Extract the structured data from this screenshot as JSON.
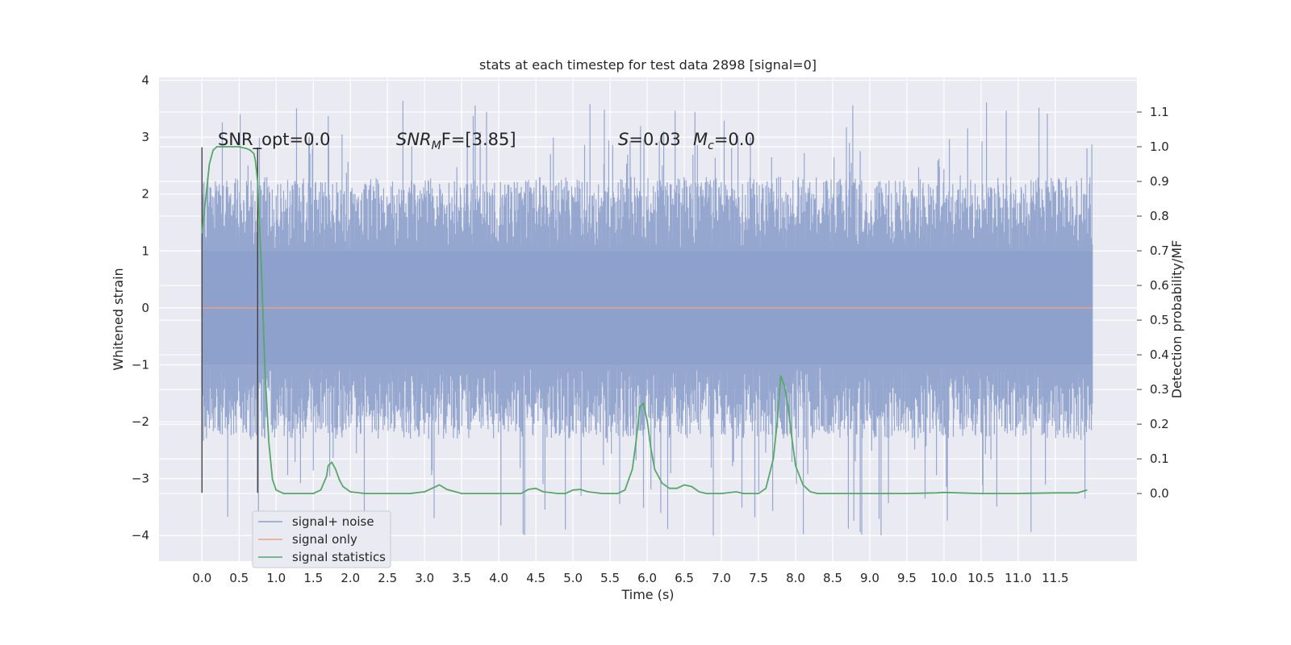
{
  "chart_data": {
    "type": "line",
    "title": "stats at each timestep for test data 2898 [signal=0]",
    "xlabel": "Time (s)",
    "ylabel_left": "Whitened strain",
    "ylabel_right": "Detection probability/MF",
    "xlim": [
      -0.58,
      12.6
    ],
    "ylim_left": [
      -4.45,
      4.05
    ],
    "ylim_right": [
      -0.195,
      1.2
    ],
    "xticks": [
      "0.0",
      "0.5",
      "1.0",
      "1.5",
      "2.0",
      "2.5",
      "3.0",
      "3.5",
      "4.0",
      "4.5",
      "5.0",
      "5.5",
      "6.0",
      "6.5",
      "7.0",
      "7.5",
      "8.0",
      "8.5",
      "9.0",
      "9.5",
      "10.0",
      "10.5",
      "11.0",
      "11.5"
    ],
    "yticks_left": [
      "−4",
      "−3",
      "−2",
      "−1",
      "0",
      "1",
      "2",
      "3",
      "4"
    ],
    "yticks_right": [
      "0.0",
      "0.1",
      "0.2",
      "0.3",
      "0.4",
      "0.5",
      "0.6",
      "0.7",
      "0.8",
      "0.9",
      "1.0",
      "1.1"
    ],
    "grid": true,
    "legend_position": "lower-left",
    "annotations": {
      "snr_opt": "SNR_opt=0.0",
      "snr_mf_sym": "SNR",
      "snr_mf_sub": "M",
      "snr_mf_rest": "F=[3.85]",
      "s_sym": "S",
      "s_rest": "=0.03",
      "mc_sym": "M",
      "mc_sub": "c",
      "mc_rest": "=0.0"
    },
    "series": [
      {
        "name": "signal+ noise",
        "color": "#8da0cb",
        "kind": "noise",
        "x_range": [
          0.0,
          12.0
        ],
        "envelope_upper": 2.3,
        "envelope_lower": -2.3,
        "peak_max": 3.65,
        "peak_min": -4.05
      },
      {
        "name": "signal only",
        "color": "#e8a384",
        "x": [
          0.0,
          12.0
        ],
        "y": [
          0.0,
          0.0
        ]
      },
      {
        "name": "signal statistics",
        "color": "#55a868",
        "x": [
          0.0,
          0.05,
          0.1,
          0.15,
          0.2,
          0.3,
          0.4,
          0.5,
          0.6,
          0.65,
          0.7,
          0.72,
          0.75,
          0.8,
          0.85,
          0.9,
          0.95,
          1.0,
          1.1,
          1.5,
          1.6,
          1.68,
          1.7,
          1.75,
          1.8,
          1.85,
          1.9,
          2.0,
          2.2,
          2.5,
          2.8,
          3.0,
          3.1,
          3.2,
          3.3,
          3.5,
          4.0,
          4.3,
          4.4,
          4.5,
          4.6,
          4.8,
          4.9,
          5.0,
          5.1,
          5.2,
          5.4,
          5.6,
          5.7,
          5.8,
          5.85,
          5.9,
          5.95,
          6.0,
          6.05,
          6.1,
          6.2,
          6.3,
          6.4,
          6.5,
          6.6,
          6.7,
          6.8,
          7.0,
          7.2,
          7.3,
          7.5,
          7.6,
          7.7,
          7.75,
          7.8,
          7.85,
          7.9,
          7.95,
          8.0,
          8.1,
          8.2,
          8.3,
          8.5,
          9.0,
          9.5,
          9.9,
          10.0,
          10.5,
          11.0,
          11.5,
          11.8,
          11.93
        ],
        "y": [
          0.75,
          0.85,
          0.95,
          0.99,
          1.0,
          1.0,
          1.0,
          1.0,
          0.995,
          0.99,
          0.98,
          0.96,
          0.9,
          0.65,
          0.35,
          0.15,
          0.04,
          0.01,
          0.0,
          0.0,
          0.01,
          0.05,
          0.08,
          0.09,
          0.07,
          0.04,
          0.02,
          0.005,
          0.0,
          0.0,
          0.0,
          0.005,
          0.015,
          0.025,
          0.012,
          0.0,
          0.0,
          0.0,
          0.012,
          0.015,
          0.005,
          0.0,
          0.0,
          0.01,
          0.012,
          0.005,
          0.0,
          0.0,
          0.01,
          0.07,
          0.15,
          0.25,
          0.26,
          0.21,
          0.13,
          0.07,
          0.03,
          0.015,
          0.015,
          0.025,
          0.02,
          0.005,
          0.0,
          0.0,
          0.005,
          0.0,
          0.0,
          0.015,
          0.1,
          0.2,
          0.34,
          0.31,
          0.25,
          0.16,
          0.08,
          0.025,
          0.005,
          0.0,
          0.0,
          0.0,
          0.0,
          0.002,
          0.003,
          0.0,
          0.0,
          0.002,
          0.002,
          0.01
        ]
      },
      {
        "name": "marker lines",
        "color": "#444444",
        "kind": "vlines",
        "x": [
          0.0,
          0.75
        ]
      }
    ]
  }
}
